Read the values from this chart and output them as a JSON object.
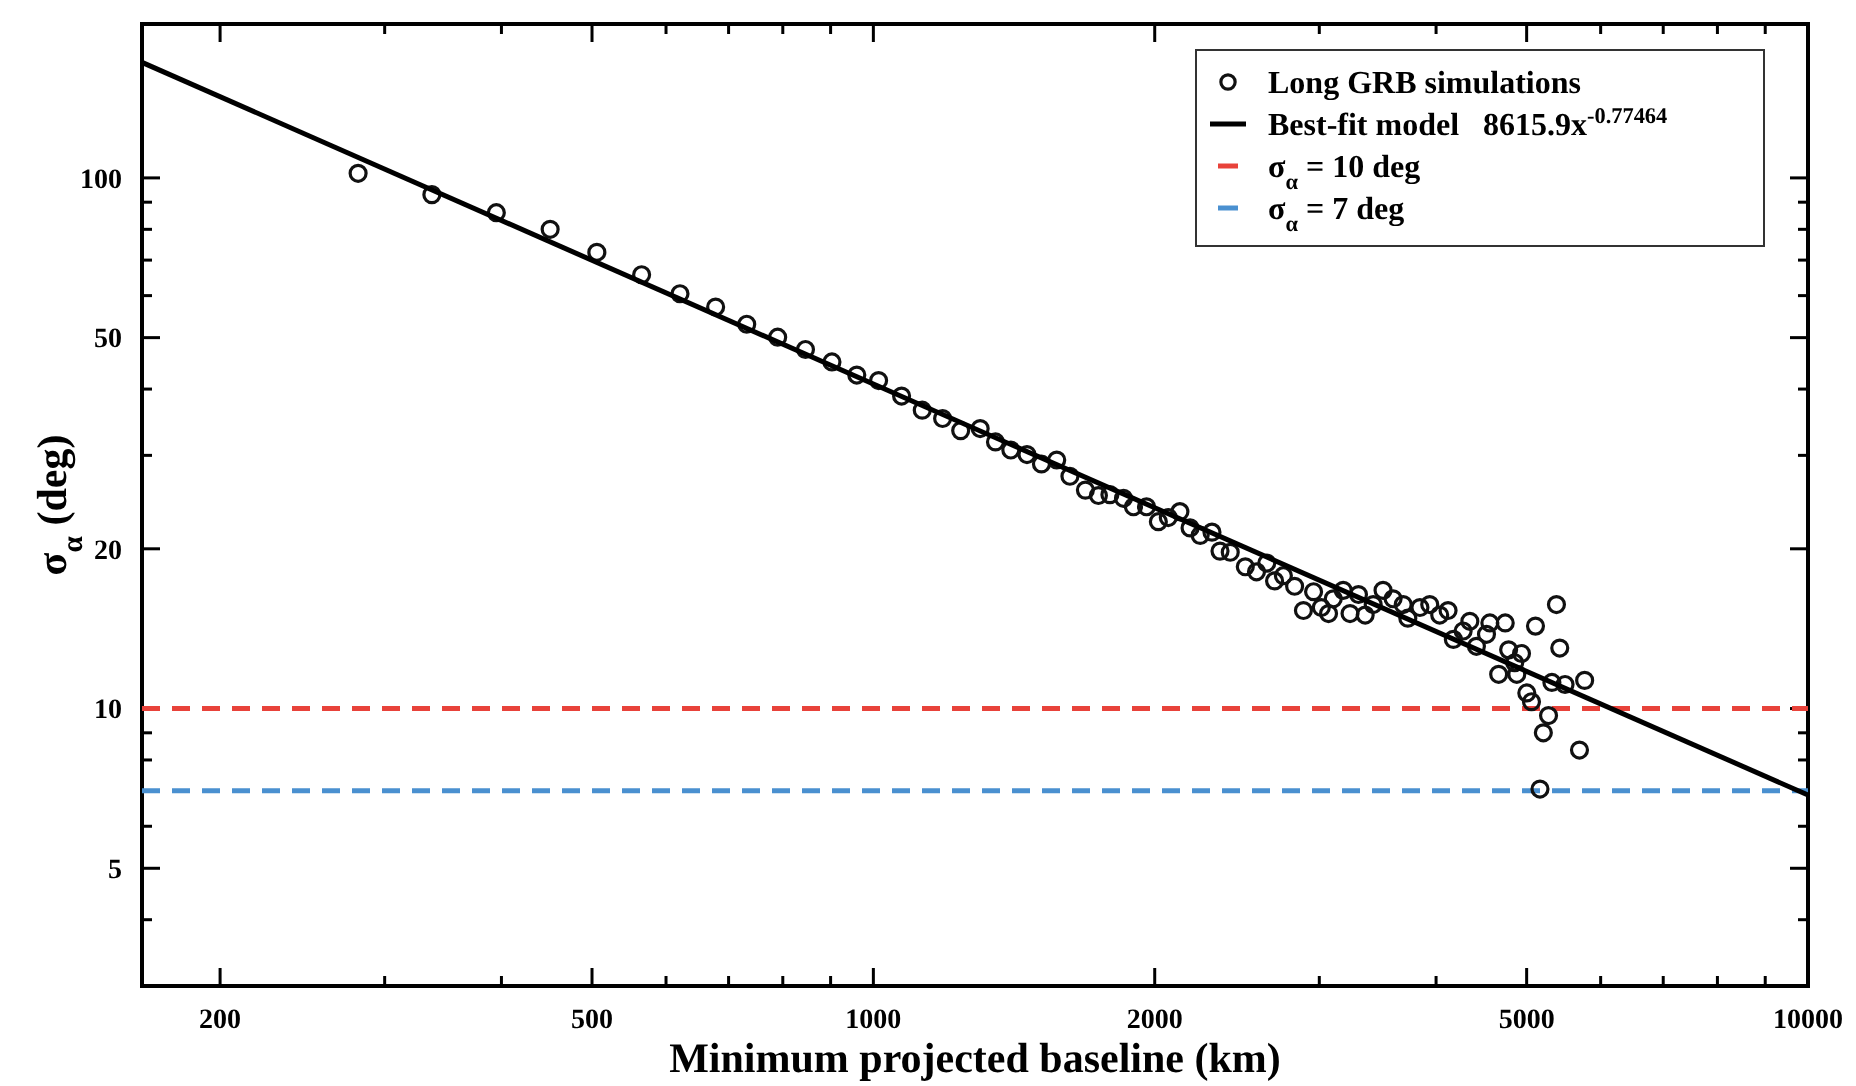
{
  "chart_data": {
    "type": "scatter",
    "xlabel": "Minimum projected baseline (km)",
    "ylabel": "σ$_{α}$ (deg)",
    "log": "xy",
    "xlim": [
      165,
      10000
    ],
    "xticks": [
      200,
      {
        "value": 300,
        "label": null
      },
      {
        "value": 400,
        "label": null
      },
      500,
      {
        "value": 600,
        "label": null
      },
      {
        "value": 700,
        "label": null
      },
      {
        "value": 800,
        "label": null
      },
      {
        "value": 900,
        "label": null
      },
      1000,
      2000,
      {
        "value": 3000,
        "label": null
      },
      {
        "value": 4000,
        "label": null
      },
      5000,
      {
        "value": 6000,
        "label": null
      },
      {
        "value": 7000,
        "label": null
      },
      {
        "value": 8000,
        "label": null
      },
      {
        "value": 9000,
        "label": null
      },
      10000
    ],
    "ylim": [
      3,
      195
    ],
    "yticks": [
      {
        "value": 3,
        "label": null
      },
      {
        "value": 4,
        "label": null
      },
      5,
      {
        "value": 6,
        "label": null
      },
      {
        "value": 7,
        "label": null
      },
      {
        "value": 8,
        "label": null
      },
      {
        "value": 9,
        "label": null
      },
      10,
      20,
      {
        "value": 30,
        "label": null
      },
      {
        "value": 40,
        "label": null
      },
      50,
      {
        "value": 60,
        "label": null
      },
      {
        "value": 70,
        "label": null
      },
      {
        "value": 80,
        "label": null
      },
      {
        "value": 90,
        "label": null
      },
      100
    ],
    "grid": false,
    "legend": "top right",
    "series": [
      {
        "name": "Long GRB simulations",
        "marker": "circle",
        "color": "#111111",
        "x": [
          281,
          337,
          395,
          451,
          506,
          565,
          621,
          678,
          732,
          790,
          846,
          903,
          960,
          1013,
          1072,
          1128,
          1186,
          1240,
          1301,
          1351,
          1403,
          1460,
          1513,
          1571,
          1623,
          1686,
          1741,
          1791,
          1852,
          1898,
          1960,
          2018,
          2068,
          2128,
          2182,
          2237,
          2303,
          2349,
          2409,
          2500,
          2570,
          2636,
          2687,
          2746,
          2823,
          2885,
          2958,
          3015,
          3069,
          3105,
          3182,
          3236,
          3304,
          3359,
          3426,
          3510,
          3598,
          3689,
          3731,
          3844,
          3938,
          4036,
          4120,
          4174,
          4276,
          4347,
          4418,
          4529,
          4567,
          4667,
          4743,
          4783,
          4855,
          4880,
          4937,
          5002,
          5060,
          5110,
          5167,
          5210,
          5277,
          5321,
          5381,
          5425,
          5496,
          5695,
          5768
        ],
        "values": [
          102,
          93,
          86,
          80,
          72.4,
          65.7,
          60.5,
          57.1,
          53,
          50.1,
          47.5,
          45,
          42.5,
          41.5,
          38.8,
          36.5,
          35.2,
          33.4,
          33.7,
          31.8,
          30.7,
          30.1,
          28.9,
          29.4,
          27.4,
          25.8,
          25.2,
          25.3,
          24.9,
          24.0,
          24.0,
          22.5,
          22.9,
          23.5,
          21.9,
          21.2,
          21.5,
          19.8,
          19.7,
          18.5,
          18.1,
          18.8,
          17.4,
          17.8,
          17.0,
          15.3,
          16.6,
          15.5,
          15.1,
          16.1,
          16.7,
          15.1,
          16.4,
          15.0,
          15.7,
          16.7,
          16.1,
          15.7,
          14.8,
          15.5,
          15.7,
          15.0,
          15.3,
          13.5,
          14.0,
          14.6,
          13.1,
          13.8,
          14.5,
          11.6,
          14.5,
          12.9,
          12.2,
          11.6,
          12.7,
          10.7,
          10.3,
          14.3,
          7.05,
          9.0,
          9.7,
          11.2,
          15.7,
          13.0,
          11.1,
          8.35,
          11.3
        ]
      },
      {
        "name": "Best-fit model   8615.9x$^{-0.77464}$",
        "type": "line",
        "line_style": "solid",
        "color": "#000000",
        "x": [
          165,
          10000
        ],
        "values": [
          165.1,
          6.87
        ]
      }
    ],
    "ref_lines": [
      {
        "axis": "y",
        "value": 10,
        "label": "σ$_{α}$ = 10 deg",
        "color": "#e8423a",
        "line_style": "dashed"
      },
      {
        "axis": "y",
        "value": 7,
        "label": "σ$_{α}$ = 7 deg",
        "color": "#4a90d0",
        "line_style": "dashed"
      }
    ]
  }
}
